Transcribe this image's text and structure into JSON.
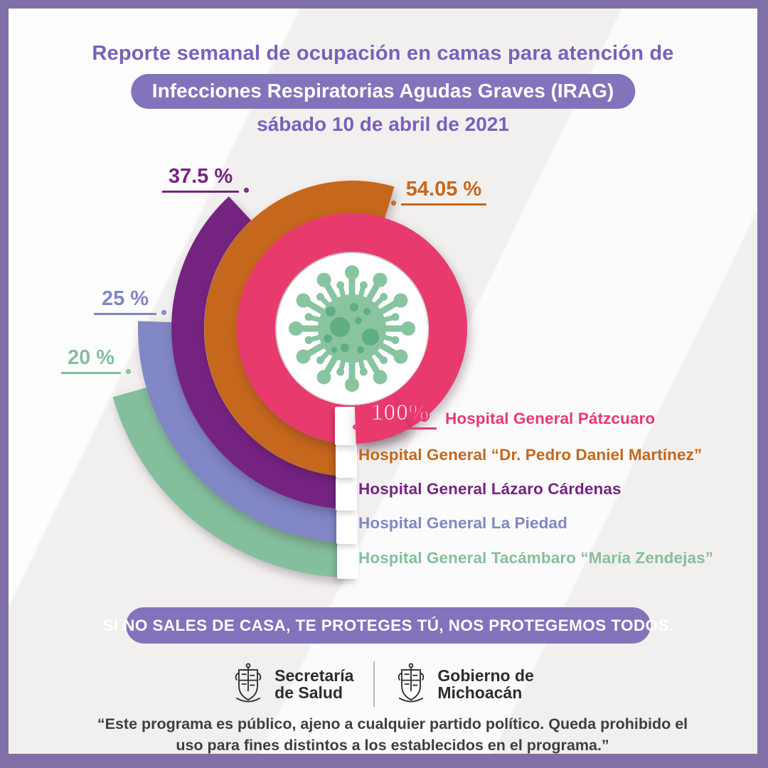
{
  "header": {
    "title": "Reporte semanal de ocupación en camas para atención de",
    "subtitle_pill": "Infecciones Respiratorias Agudas Graves (IRAG)",
    "date": "sábado 10 de abril de 2021"
  },
  "chart_data": {
    "type": "radial_bar",
    "unit": "%",
    "ylim": [
      0,
      100
    ],
    "start": "bottom",
    "direction": "clockwise",
    "center_icon": "coronavirus-icon",
    "series": [
      {
        "name": "Hospital General Pátzcuaro",
        "value": 100,
        "label": "100%",
        "color": "#E93A6E"
      },
      {
        "name": "Hospital General “Dr. Pedro Daniel Martínez”",
        "value": 54.05,
        "label": "54.05 %",
        "color": "#C5671D"
      },
      {
        "name": "Hospital General Lázaro Cárdenas",
        "value": 37.5,
        "label": "37.5 %",
        "color": "#752381"
      },
      {
        "name": "Hospital General La Piedad",
        "value": 25,
        "label": "25 %",
        "color": "#8087C4"
      },
      {
        "name": "Hospital General Tacámbaro “María Zendejas”",
        "value": 20,
        "label": "20 %",
        "color": "#84BF9D"
      }
    ]
  },
  "banner": {
    "text": "SI NO SALES DE CASA, TE PROTEGES TÚ, NOS PROTEGEMOS TODOS."
  },
  "footer": {
    "logo1": {
      "line1": "Secretaría",
      "line2": "de Salud"
    },
    "logo2": {
      "line1": "Gobierno de",
      "line2": "Michoacán"
    },
    "disclaimer": "“Este programa es público, ajeno a cualquier partido político. Queda prohibido el uso para fines distintos a los establecidos en el programa.”"
  },
  "colors": {
    "frame_purple": "#8170A8",
    "theme_purple": "#8273BC",
    "heading_purple": "#7A5FBE",
    "dark_text": "#3E3E3E",
    "logo_text": "#2D2D2D",
    "virus_body": "#87C49F",
    "virus_spot": "#5FAE83"
  }
}
